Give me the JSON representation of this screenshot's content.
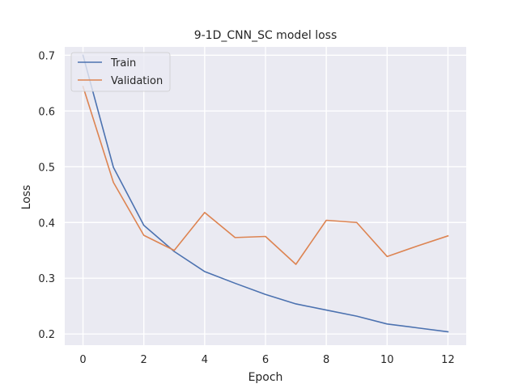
{
  "chart_data": {
    "type": "line",
    "title": "9-1D_CNN_SC model loss",
    "xlabel": "Epoch",
    "ylabel": "Loss",
    "xlim": [
      -0.6,
      12.6
    ],
    "ylim": [
      0.18,
      0.715
    ],
    "xticks": [
      0,
      2,
      4,
      6,
      8,
      10,
      12
    ],
    "yticks": [
      0.2,
      0.3,
      0.4,
      0.5,
      0.6,
      0.7
    ],
    "grid": true,
    "legend_position": "top-left",
    "x": [
      0,
      1,
      2,
      3,
      4,
      5,
      6,
      7,
      8,
      9,
      10,
      11,
      12
    ],
    "series": [
      {
        "name": "Train",
        "color": "#4c72b0",
        "values": [
          0.7,
          0.499,
          0.395,
          0.348,
          0.312,
          0.291,
          0.271,
          0.254,
          0.243,
          0.232,
          0.218,
          0.211,
          0.204
        ]
      },
      {
        "name": "Validation",
        "color": "#dd8452",
        "values": [
          0.644,
          0.472,
          0.377,
          0.35,
          0.418,
          0.373,
          0.375,
          0.325,
          0.404,
          0.4,
          0.339,
          0.358,
          0.376
        ]
      }
    ]
  }
}
